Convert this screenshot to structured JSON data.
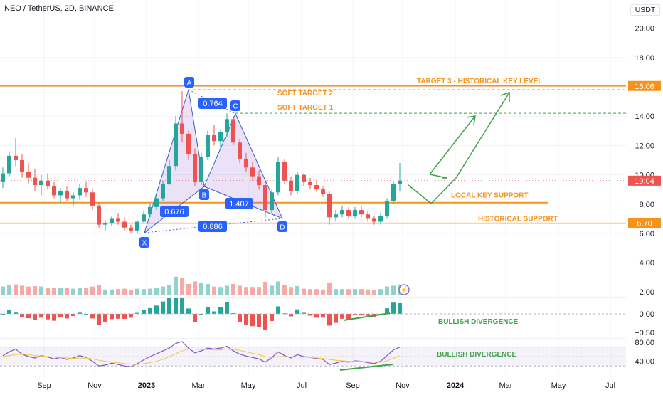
{
  "header": {
    "symbol": "NEO / TetherUS, 2D, BINANCE",
    "currency": "USDT"
  },
  "colors": {
    "bull": "#26a69a",
    "bear": "#ef5350",
    "orange": "#f7931a",
    "green": "#3ea34a",
    "pattern": "#3d5fc9",
    "purple": "#7e57c2"
  },
  "chart_data": {
    "type": "candlestick",
    "x": [
      "Sep",
      "Nov",
      "2023",
      "Mar",
      "May",
      "Jul",
      "Sep",
      "Nov",
      "2024",
      "Mar",
      "May",
      "Jul"
    ],
    "ylim": [
      5.5,
      21
    ],
    "price_axis_labels": [
      "20.00",
      "18.00",
      "16.00",
      "14.00",
      "12.00",
      "10.00",
      "8.00",
      "6.00",
      "4.00",
      "2.00"
    ],
    "osc_axis_labels": [
      "0.00",
      "−0.50"
    ],
    "rsi_axis_labels": [
      "80.00",
      "40.00"
    ],
    "levels": [
      {
        "label": "TARGET 3 - HISTORICAL KEY LEVEL",
        "value": 16.06,
        "tag": "16.06"
      },
      {
        "label": "SOFT TARGET 2",
        "value": 15.8
      },
      {
        "label": "SOFT TARGET 1",
        "value": 14.2
      },
      {
        "label": "LOCAL KEY SUPPORT",
        "value": 8.1
      },
      {
        "label": "HISTORICAL SUPPORT",
        "value": 6.7,
        "tag": "6.70"
      }
    ],
    "current_price": {
      "value": 9.6,
      "tag": "19:04"
    },
    "pattern": {
      "points": [
        {
          "label": "X",
          "date": "Dec 2022",
          "price": 6.0
        },
        {
          "label": "A",
          "date": "Feb 2023",
          "price": 15.7
        },
        {
          "label": "B",
          "date": "Mar 2023",
          "price": 9.2
        },
        {
          "label": "C",
          "date": "Apr 2023",
          "price": 14.2
        },
        {
          "label": "D",
          "date": "Jun 2023",
          "price": 7.1
        }
      ],
      "ratios": [
        "0.764",
        "0.676",
        "1.407",
        "0.886"
      ]
    },
    "annotations": [
      "BULLISH DIVERGENCE",
      "BULLISH DIVERGENCE"
    ],
    "candles": [
      [
        9.5,
        10.5,
        9.1,
        10.1
      ],
      [
        10.1,
        11.6,
        9.9,
        11.3
      ],
      [
        11.3,
        12.5,
        10.6,
        11.0
      ],
      [
        11.0,
        11.4,
        9.8,
        10.2
      ],
      [
        10.2,
        10.8,
        9.4,
        9.8
      ],
      [
        9.8,
        10.4,
        8.9,
        9.3
      ],
      [
        9.3,
        10.0,
        8.6,
        9.6
      ],
      [
        9.6,
        10.1,
        9.0,
        9.2
      ],
      [
        9.2,
        9.5,
        8.4,
        8.6
      ],
      [
        8.6,
        9.1,
        8.1,
        8.9
      ],
      [
        8.9,
        9.2,
        8.2,
        8.4
      ],
      [
        8.4,
        8.8,
        7.9,
        8.6
      ],
      [
        8.6,
        9.4,
        8.3,
        9.1
      ],
      [
        9.1,
        9.5,
        8.5,
        8.8
      ],
      [
        8.8,
        9.0,
        7.6,
        7.9
      ],
      [
        7.9,
        8.1,
        6.4,
        6.6
      ],
      [
        6.6,
        6.9,
        6.2,
        6.7
      ],
      [
        6.7,
        7.2,
        6.5,
        7.0
      ],
      [
        7.0,
        7.4,
        6.6,
        6.8
      ],
      [
        6.8,
        7.1,
        6.2,
        6.4
      ],
      [
        6.4,
        6.6,
        6.0,
        6.2
      ],
      [
        6.2,
        6.9,
        6.0,
        6.8
      ],
      [
        6.8,
        7.5,
        6.7,
        7.3
      ],
      [
        7.3,
        8.0,
        7.1,
        7.8
      ],
      [
        7.8,
        8.6,
        7.6,
        8.4
      ],
      [
        8.4,
        9.6,
        8.2,
        9.4
      ],
      [
        9.4,
        11.0,
        9.3,
        10.6
      ],
      [
        10.6,
        14.0,
        10.3,
        13.5
      ],
      [
        13.5,
        15.7,
        12.2,
        12.8
      ],
      [
        12.8,
        13.0,
        11.0,
        11.4
      ],
      [
        11.4,
        11.8,
        9.2,
        9.5
      ],
      [
        9.5,
        11.5,
        9.3,
        11.2
      ],
      [
        11.2,
        13.0,
        11.0,
        12.7
      ],
      [
        12.7,
        13.4,
        12.0,
        12.3
      ],
      [
        12.3,
        13.1,
        11.8,
        12.9
      ],
      [
        12.9,
        14.2,
        12.6,
        13.8
      ],
      [
        13.8,
        14.0,
        12.0,
        12.2
      ],
      [
        12.2,
        12.4,
        10.8,
        11.1
      ],
      [
        11.1,
        11.5,
        10.2,
        10.5
      ],
      [
        10.5,
        10.9,
        9.6,
        9.9
      ],
      [
        9.9,
        10.3,
        9.0,
        9.3
      ],
      [
        9.3,
        9.6,
        7.1,
        7.6
      ],
      [
        7.6,
        9.0,
        7.4,
        8.8
      ],
      [
        8.8,
        11.2,
        8.6,
        10.9
      ],
      [
        10.9,
        11.1,
        9.4,
        9.6
      ],
      [
        9.6,
        9.9,
        8.6,
        8.9
      ],
      [
        8.9,
        10.2,
        8.7,
        10.0
      ],
      [
        10.0,
        10.1,
        9.2,
        9.5
      ],
      [
        9.5,
        9.8,
        9.0,
        9.3
      ],
      [
        9.3,
        9.6,
        8.8,
        9.0
      ],
      [
        9.0,
        9.2,
        8.5,
        8.7
      ],
      [
        8.7,
        8.9,
        6.6,
        7.1
      ],
      [
        7.1,
        7.6,
        6.8,
        7.3
      ],
      [
        7.3,
        7.9,
        7.1,
        7.6
      ],
      [
        7.6,
        7.8,
        7.0,
        7.2
      ],
      [
        7.2,
        7.8,
        7.0,
        7.6
      ],
      [
        7.6,
        7.9,
        7.1,
        7.3
      ],
      [
        7.3,
        7.5,
        6.8,
        7.0
      ],
      [
        7.0,
        7.2,
        6.6,
        6.8
      ],
      [
        6.8,
        7.4,
        6.6,
        7.2
      ],
      [
        7.2,
        8.4,
        7.0,
        8.2
      ],
      [
        8.2,
        9.6,
        8.0,
        9.4
      ],
      [
        9.4,
        10.8,
        8.9,
        9.6
      ]
    ],
    "rsi": [
      52,
      60,
      66,
      55,
      50,
      47,
      52,
      49,
      45,
      48,
      44,
      47,
      52,
      48,
      40,
      30,
      32,
      36,
      33,
      30,
      28,
      35,
      43,
      50,
      56,
      62,
      68,
      78,
      82,
      68,
      58,
      62,
      68,
      66,
      68,
      72,
      62,
      55,
      51,
      48,
      45,
      38,
      48,
      60,
      52,
      47,
      54,
      50,
      48,
      46,
      44,
      33,
      36,
      40,
      38,
      41,
      40,
      37,
      35,
      40,
      52,
      64,
      70
    ],
    "rsi_ma": [
      50,
      52,
      54,
      55,
      54,
      52,
      51,
      50,
      49,
      48,
      47,
      46,
      47,
      47,
      45,
      42,
      40,
      38,
      37,
      35,
      34,
      33,
      35,
      37,
      40,
      44,
      50,
      56,
      62,
      66,
      66,
      65,
      65,
      64,
      64,
      66,
      65,
      63,
      60,
      57,
      54,
      50,
      48,
      50,
      50,
      49,
      49,
      49,
      48,
      47,
      46,
      44,
      42,
      41,
      40,
      40,
      40,
      39,
      38,
      38,
      41,
      46,
      52
    ]
  }
}
